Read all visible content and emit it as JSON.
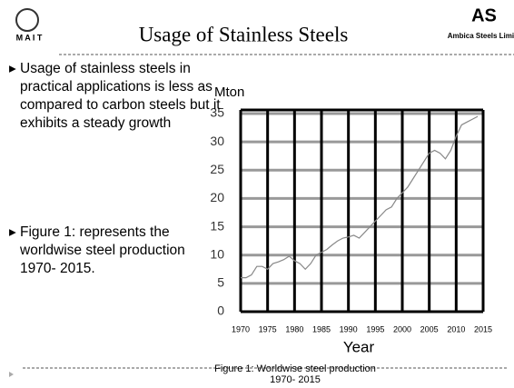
{
  "header": {
    "logo_left": "M A I T",
    "title": "Usage of Stainless Steels",
    "logo_right": "Ambica Steels Limite"
  },
  "bullets": [
    "Usage of stainless steels in practical applications is less as compared to carbon steels but it exhibits a steady growth",
    "Figure 1: represents the worldwise steel production 1970- 2015."
  ],
  "chart_data": {
    "type": "line",
    "ylabel": "Mton",
    "xlabel": "Year",
    "caption": "Figure 1: Worldwise steel production 1970- 2015",
    "x": [
      1970,
      1971,
      1972,
      1973,
      1974,
      1975,
      1976,
      1977,
      1978,
      1979,
      1980,
      1981,
      1982,
      1983,
      1984,
      1985,
      1986,
      1987,
      1988,
      1989,
      1990,
      1991,
      1992,
      1993,
      1994,
      1995,
      1996,
      1997,
      1998,
      1999,
      2000,
      2001,
      2002,
      2003,
      2004,
      2005,
      2006,
      2007,
      2008,
      2009,
      2010,
      2011,
      2012,
      2013,
      2014
    ],
    "values": [
      6,
      6,
      6.5,
      8,
      8,
      7.5,
      8.5,
      8.8,
      9.2,
      9.8,
      9,
      8.5,
      7.5,
      8.5,
      10,
      10.5,
      11,
      11.8,
      12.5,
      13,
      13.2,
      13.5,
      13,
      14,
      15,
      16,
      17,
      18,
      18.5,
      20,
      21,
      22,
      23.5,
      25,
      26.5,
      28,
      28.5,
      28,
      27,
      28.5,
      31,
      33,
      33.5,
      34,
      34.5
    ],
    "color": "#888888",
    "xlim": [
      1970,
      2015
    ],
    "xticks": [
      1970,
      1975,
      1980,
      1985,
      1990,
      1995,
      2000,
      2005,
      2010,
      2015
    ],
    "ylim": [
      0,
      35
    ],
    "yticks": [
      0,
      5,
      10,
      15,
      20,
      25,
      30,
      35
    ],
    "grid": true
  }
}
